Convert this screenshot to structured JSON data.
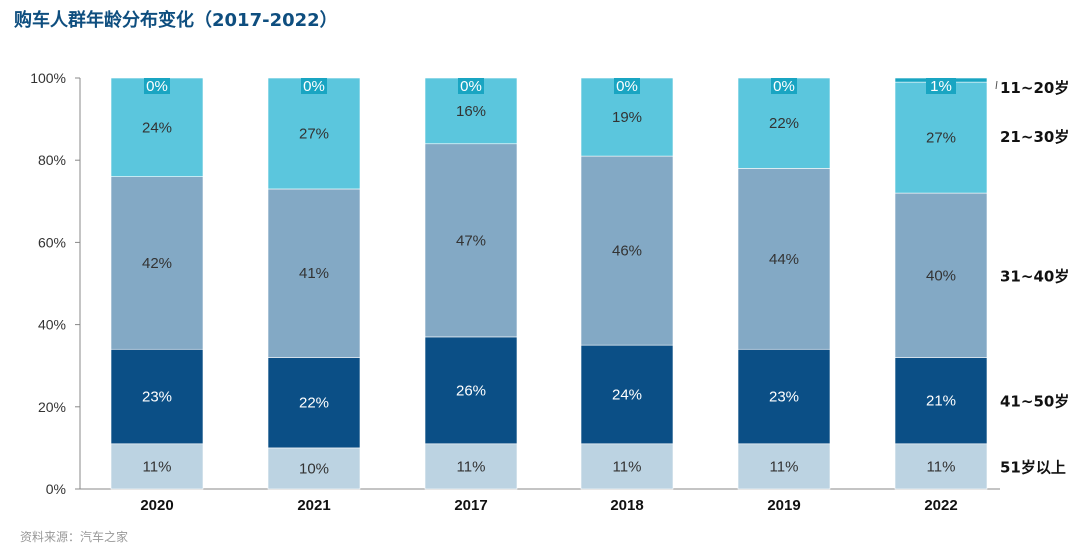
{
  "title": "购车人群年龄分布变化（2017-2022）",
  "source": "资料来源：汽车之家",
  "chart_data": {
    "type": "bar",
    "stacked": true,
    "categories": [
      "2020",
      "2021",
      "2017",
      "2018",
      "2019",
      "2022"
    ],
    "series": [
      {
        "name": "51岁以上",
        "color": "#bcd3e2",
        "label_color": "#333333",
        "values": [
          11,
          10,
          11,
          11,
          11,
          11
        ]
      },
      {
        "name": "41~50岁",
        "color": "#0b4f86",
        "label_color": "#ffffff",
        "values": [
          23,
          22,
          26,
          24,
          23,
          21
        ]
      },
      {
        "name": "31~40岁",
        "color": "#83a9c5",
        "label_color": "#333333",
        "values": [
          42,
          41,
          47,
          46,
          44,
          40
        ]
      },
      {
        "name": "21~30岁",
        "color": "#5bc6dd",
        "label_color": "#333333",
        "values": [
          24,
          27,
          16,
          19,
          22,
          27
        ]
      },
      {
        "name": "11~20岁",
        "color": "#19a5c2",
        "label_color": "#ffffff",
        "values": [
          0,
          0,
          0,
          0,
          0,
          1
        ]
      }
    ],
    "data_labels": [
      [
        "11%",
        "10%",
        "11%",
        "11%",
        "11%",
        "11%"
      ],
      [
        "23%",
        "22%",
        "26%",
        "24%",
        "23%",
        "21%"
      ],
      [
        "42%",
        "41%",
        "47%",
        "46%",
        "44%",
        "40%"
      ],
      [
        "24%",
        "27%",
        "16%",
        "19%",
        "22%",
        "27%"
      ],
      [
        "0%",
        "0%",
        "0%",
        "0%",
        "0%",
        "1%"
      ]
    ],
    "yticks": [
      "0%",
      "20%",
      "40%",
      "60%",
      "80%",
      "100%"
    ],
    "ylim": [
      0,
      100
    ],
    "grid": false,
    "legend_position": "right"
  }
}
